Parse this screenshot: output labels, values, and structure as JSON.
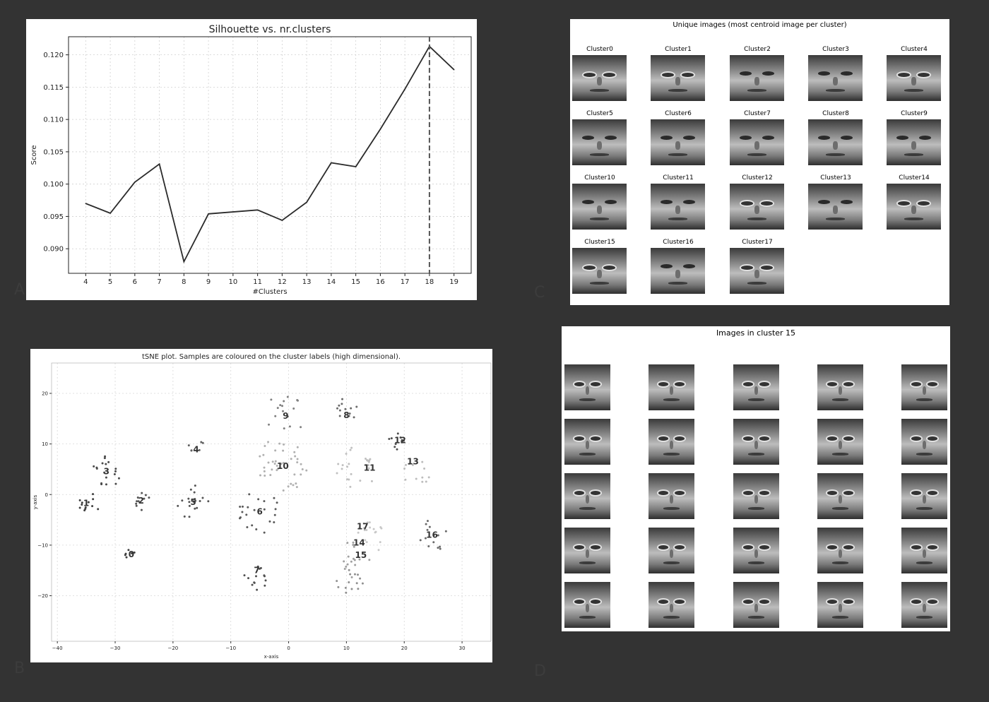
{
  "panel_letters": {
    "a": "A",
    "b": "B",
    "c": "C",
    "d": "D"
  },
  "chart_data": [
    {
      "type": "line",
      "title": "Silhouette vs. nr.clusters",
      "xlabel": "#Clusters",
      "ylabel": "Score",
      "x": [
        4,
        5,
        6,
        7,
        8,
        9,
        10,
        11,
        12,
        13,
        14,
        15,
        16,
        17,
        18,
        19
      ],
      "values": [
        0.097,
        0.0955,
        0.1003,
        0.1031,
        0.088,
        0.0954,
        0.0957,
        0.096,
        0.0944,
        0.0972,
        0.1033,
        0.1027,
        0.1085,
        0.1147,
        0.1213,
        0.1177
      ],
      "xlim": [
        3.3,
        19.7
      ],
      "ylim": [
        0.0862,
        0.1228
      ],
      "yticks": [
        "0.090",
        "0.095",
        "0.100",
        "0.105",
        "0.110",
        "0.115",
        "0.120"
      ],
      "ytick_values": [
        0.09,
        0.095,
        0.1,
        0.105,
        0.11,
        0.115,
        0.12
      ],
      "xticks": [
        "4",
        "5",
        "6",
        "7",
        "8",
        "9",
        "10",
        "11",
        "12",
        "13",
        "14",
        "15",
        "16",
        "17",
        "18",
        "19"
      ],
      "vline_x": 18,
      "grid": true,
      "colors": {
        "line": "#2b2b2b",
        "vline": "#555555",
        "grid": "#d0d0d0"
      }
    },
    {
      "type": "scatter",
      "title": "tSNE plot. Samples are coloured on the cluster labels (high dimensional).",
      "xlabel": "x-axis",
      "ylabel": "y-axis",
      "xlim": [
        -41,
        35
      ],
      "ylim": [
        -29,
        26
      ],
      "xticks": [
        "−40",
        "−30",
        "−20",
        "−10",
        "0",
        "10",
        "20",
        "30"
      ],
      "xtick_values": [
        -40,
        -30,
        -20,
        -10,
        0,
        10,
        20,
        30
      ],
      "yticks": [
        "−20",
        "−10",
        "0",
        "10",
        "20"
      ],
      "ytick_values": [
        -20,
        -10,
        0,
        10,
        20
      ],
      "grid": true,
      "clusters": [
        {
          "label": "0",
          "x": -27.5,
          "y": -12,
          "gray": "#404040",
          "spread": 1.0,
          "n": 6
        },
        {
          "label": "1",
          "x": -34.8,
          "y": -2,
          "gray": "#404040",
          "spread": 2.0,
          "n": 12
        },
        {
          "label": "2",
          "x": -25.5,
          "y": -1.5,
          "gray": "#555555",
          "spread": 1.6,
          "n": 10
        },
        {
          "label": "3",
          "x": -31.5,
          "y": 4.5,
          "gray": "#4a4a4a",
          "spread": 2.6,
          "n": 18
        },
        {
          "label": "4",
          "x": -16,
          "y": 9.3,
          "gray": "#606060",
          "spread": 1.4,
          "n": 6
        },
        {
          "label": "5",
          "x": -16.5,
          "y": -1.5,
          "gray": "#555555",
          "spread": 3.0,
          "n": 18
        },
        {
          "label": "6",
          "x": -5,
          "y": -3.5,
          "gray": "#5a5a5a",
          "spread": 3.6,
          "n": 22
        },
        {
          "label": "7",
          "x": -5.5,
          "y": -16.5,
          "gray": "#505050",
          "spread": 2.2,
          "n": 14
        },
        {
          "label": "8",
          "x": 10,
          "y": 16.5,
          "gray": "#6a6a6a",
          "spread": 2.2,
          "n": 12
        },
        {
          "label": "9",
          "x": -0.5,
          "y": 16,
          "gray": "#808080",
          "spread": 3.5,
          "n": 16
        },
        {
          "label": "10",
          "x": -1,
          "y": 6,
          "gray": "#b0b0b0",
          "spread": 4.5,
          "n": 40
        },
        {
          "label": "11",
          "x": 12,
          "y": 5,
          "gray": "#c0c0c0",
          "spread": 3.8,
          "n": 24
        },
        {
          "label": "12",
          "x": 18.5,
          "y": 10.5,
          "gray": "#505050",
          "spread": 1.6,
          "n": 10
        },
        {
          "label": "13",
          "x": 22,
          "y": 4,
          "gray": "#bdbdbd",
          "spread": 2.6,
          "n": 12
        },
        {
          "label": "14",
          "x": 11,
          "y": -13,
          "gray": "#a0a0a0",
          "spread": 3.0,
          "n": 16
        },
        {
          "label": "15",
          "x": 10.5,
          "y": -17,
          "gray": "#909090",
          "spread": 2.5,
          "n": 14
        },
        {
          "label": "16",
          "x": 25,
          "y": -8,
          "gray": "#6a6a6a",
          "spread": 2.6,
          "n": 14
        },
        {
          "label": "17",
          "x": 14,
          "y": -8,
          "gray": "#c8c8c8",
          "spread": 3.0,
          "n": 18
        }
      ],
      "label_positions": [
        {
          "text": "0",
          "x": -27.2,
          "y": -11.8
        },
        {
          "text": "1",
          "x": -35.0,
          "y": -1.7
        },
        {
          "text": "2",
          "x": -25.5,
          "y": -1.2
        },
        {
          "text": "3",
          "x": -31.5,
          "y": 4.6
        },
        {
          "text": "4",
          "x": -16.0,
          "y": 8.9
        },
        {
          "text": "5",
          "x": -16.5,
          "y": -1.5
        },
        {
          "text": "6",
          "x": -5.0,
          "y": -3.4
        },
        {
          "text": "7",
          "x": -5.5,
          "y": -15.0
        },
        {
          "text": "8",
          "x": 10.0,
          "y": 15.7
        },
        {
          "text": "9",
          "x": -0.5,
          "y": 15.5
        },
        {
          "text": "10",
          "x": -1.0,
          "y": 5.6
        },
        {
          "text": "11",
          "x": 14.0,
          "y": 5.3
        },
        {
          "text": "12",
          "x": 19.3,
          "y": 10.7
        },
        {
          "text": "13",
          "x": 21.5,
          "y": 6.5
        },
        {
          "text": "14",
          "x": 12.2,
          "y": -9.5
        },
        {
          "text": "15",
          "x": 12.5,
          "y": -12.0
        },
        {
          "text": "16",
          "x": 24.8,
          "y": -8.0
        },
        {
          "text": "17",
          "x": 12.8,
          "y": -6.3
        }
      ]
    }
  ],
  "centroids_panel": {
    "title": "Unique images (most centroid image per cluster)",
    "labels": [
      "Cluster0",
      "Cluster1",
      "Cluster2",
      "Cluster3",
      "Cluster4",
      "Cluster5",
      "Cluster6",
      "Cluster7",
      "Cluster8",
      "Cluster9",
      "Cluster10",
      "Cluster11",
      "Cluster12",
      "Cluster13",
      "Cluster14",
      "Cluster15",
      "Cluster16",
      "Cluster17"
    ],
    "glasses": [
      1,
      1,
      0,
      0,
      1,
      0,
      0,
      0,
      0,
      0,
      0,
      0,
      1,
      0,
      1,
      1,
      0,
      1
    ]
  },
  "cluster15_panel": {
    "title": "Images in cluster 15",
    "rows": 5,
    "cols": 5
  }
}
